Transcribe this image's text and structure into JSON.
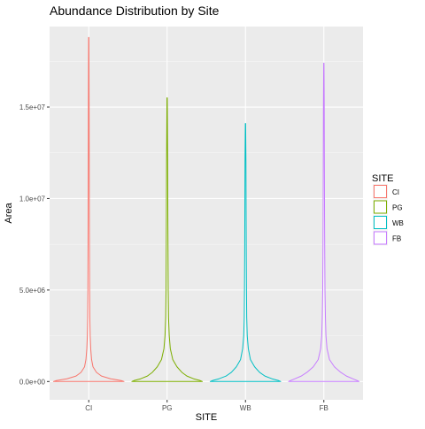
{
  "chart_data": {
    "type": "violin",
    "title": "Abundance Distribution by Site",
    "xlabel": "SITE",
    "ylabel": "Area",
    "categories": [
      "CI",
      "PG",
      "WB",
      "FB"
    ],
    "y_ticks": [
      0,
      5000000,
      10000000,
      15000000
    ],
    "y_tick_labels": [
      "0.0e+00",
      "5.0e+06",
      "1.0e+07",
      "1.5e+07"
    ],
    "ylim": [
      -1000000,
      19400000
    ],
    "grid": true,
    "legend": {
      "title": "SITE",
      "position": "right"
    },
    "series": [
      {
        "name": "CI",
        "color": "#F8766D",
        "max": 18800000,
        "profile": [
          [
            0,
            1
          ],
          [
            50000,
            0.92
          ],
          [
            150000,
            0.62
          ],
          [
            300000,
            0.36
          ],
          [
            500000,
            0.22
          ],
          [
            800000,
            0.12
          ],
          [
            1200000,
            0.08
          ],
          [
            1800000,
            0.055
          ],
          [
            2500000,
            0.04
          ],
          [
            3500000,
            0.03
          ],
          [
            5000000,
            0.024
          ],
          [
            7000000,
            0.02
          ],
          [
            9000000,
            0.016
          ],
          [
            12000000,
            0.013
          ],
          [
            15000000,
            0.01
          ],
          [
            18800000,
            0.004
          ]
        ]
      },
      {
        "name": "PG",
        "color": "#7CAE00",
        "max": 15500000,
        "profile": [
          [
            0,
            1
          ],
          [
            50000,
            0.94
          ],
          [
            150000,
            0.75
          ],
          [
            300000,
            0.56
          ],
          [
            500000,
            0.42
          ],
          [
            800000,
            0.28
          ],
          [
            1200000,
            0.16
          ],
          [
            1800000,
            0.09
          ],
          [
            2500000,
            0.06
          ],
          [
            3500000,
            0.04
          ],
          [
            5000000,
            0.03
          ],
          [
            7000000,
            0.025
          ],
          [
            9000000,
            0.02
          ],
          [
            12000000,
            0.015
          ],
          [
            15500000,
            0.004
          ]
        ]
      },
      {
        "name": "WB",
        "color": "#00BFC4",
        "max": 14100000,
        "profile": [
          [
            0,
            1
          ],
          [
            50000,
            0.94
          ],
          [
            150000,
            0.75
          ],
          [
            300000,
            0.55
          ],
          [
            500000,
            0.4
          ],
          [
            800000,
            0.26
          ],
          [
            1200000,
            0.14
          ],
          [
            1800000,
            0.08
          ],
          [
            2500000,
            0.05
          ],
          [
            3500000,
            0.035
          ],
          [
            5000000,
            0.028
          ],
          [
            7000000,
            0.022
          ],
          [
            9000000,
            0.018
          ],
          [
            12000000,
            0.013
          ],
          [
            14100000,
            0.004
          ]
        ]
      },
      {
        "name": "FB",
        "color": "#C77CFF",
        "max": 17400000,
        "profile": [
          [
            0,
            1
          ],
          [
            50000,
            0.95
          ],
          [
            150000,
            0.82
          ],
          [
            300000,
            0.64
          ],
          [
            500000,
            0.48
          ],
          [
            800000,
            0.3
          ],
          [
            1200000,
            0.16
          ],
          [
            1800000,
            0.09
          ],
          [
            2500000,
            0.06
          ],
          [
            3500000,
            0.045
          ],
          [
            5000000,
            0.032
          ],
          [
            7000000,
            0.025
          ],
          [
            9000000,
            0.02
          ],
          [
            12000000,
            0.015
          ],
          [
            15000000,
            0.011
          ],
          [
            17400000,
            0.004
          ]
        ]
      }
    ]
  }
}
